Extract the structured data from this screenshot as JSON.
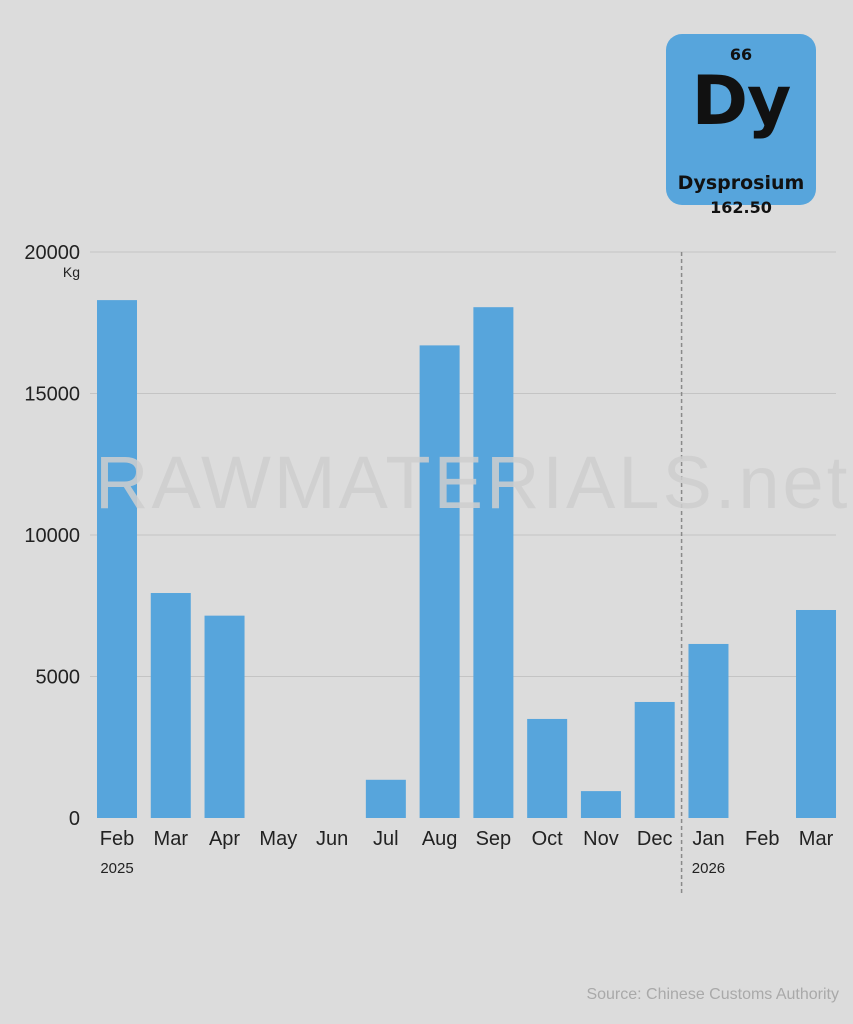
{
  "element": {
    "number": "66",
    "symbol": "Dy",
    "name": "Dysprosium",
    "mass": "162.50",
    "color": "#57a5dc"
  },
  "watermark": "RAWMATERIALS.net",
  "source": "Source: Chinese Customs Authority",
  "chart_data": {
    "type": "bar",
    "title": "",
    "xlabel": "",
    "ylabel": "",
    "unit": "Kg",
    "categories": [
      "Feb",
      "Mar",
      "Apr",
      "May",
      "Jun",
      "Jul",
      "Aug",
      "Sep",
      "Oct",
      "Nov",
      "Dec",
      "Jan",
      "Feb",
      "Mar"
    ],
    "values": [
      18300,
      7950,
      7150,
      0,
      0,
      1350,
      16700,
      18050,
      3500,
      950,
      4100,
      6150,
      0,
      7350
    ],
    "year_labels": [
      {
        "label": "2025",
        "category_index": 0
      },
      {
        "label": "2026",
        "category_index": 11
      }
    ],
    "divider_before_index": 11,
    "ylim": [
      0,
      20000
    ],
    "yticks": [
      0,
      5000,
      10000,
      15000,
      20000
    ],
    "grid": true,
    "bar_color": "#57a5dc"
  }
}
